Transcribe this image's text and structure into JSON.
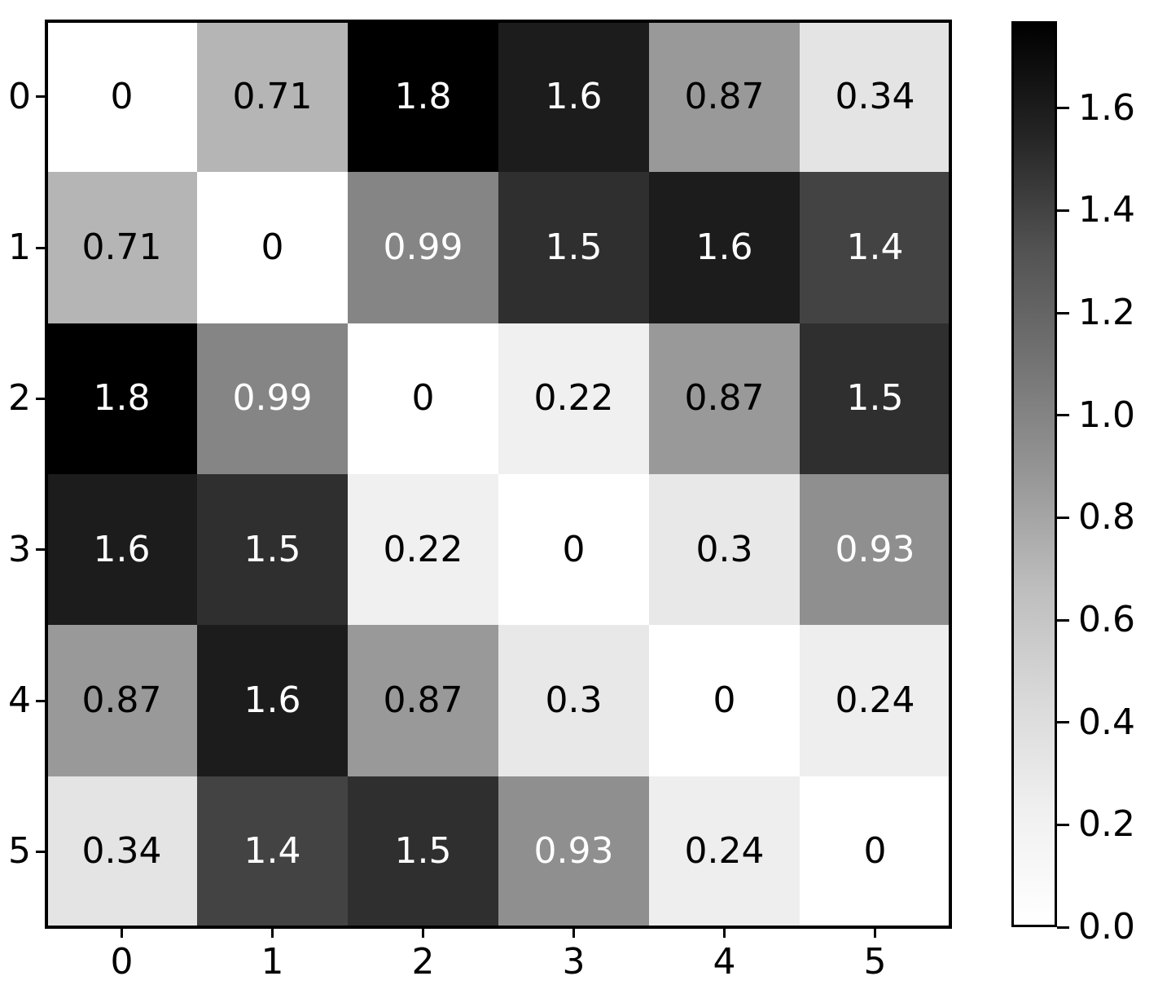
{
  "colors": {
    "background": "#ffffff",
    "spine": "#000000",
    "annotation_dark": "#000000",
    "annotation_light": "#ffffff"
  },
  "chart_data": {
    "type": "heatmap",
    "title": "",
    "xlabel": "",
    "ylabel": "",
    "colormap": "Greys",
    "vmin": 0,
    "vmax": 1.77,
    "grid": false,
    "x_tick_labels": [
      "0",
      "1",
      "2",
      "3",
      "4",
      "5"
    ],
    "y_tick_labels": [
      "0",
      "1",
      "2",
      "3",
      "4",
      "5"
    ],
    "matrix": [
      [
        0,
        0.71,
        1.8,
        1.6,
        0.87,
        0.34
      ],
      [
        0.71,
        0,
        0.99,
        1.5,
        1.6,
        1.4
      ],
      [
        1.8,
        0.99,
        0,
        0.22,
        0.87,
        1.5
      ],
      [
        1.6,
        1.5,
        0.22,
        0,
        0.3,
        0.93
      ],
      [
        0.87,
        1.6,
        0.87,
        0.3,
        0,
        0.24
      ],
      [
        0.34,
        1.4,
        1.5,
        0.93,
        0.24,
        0
      ]
    ],
    "cell_labels": [
      [
        "0",
        "0.71",
        "1.8",
        "1.6",
        "0.87",
        "0.34"
      ],
      [
        "0.71",
        "0",
        "0.99",
        "1.5",
        "1.6",
        "1.4"
      ],
      [
        "1.8",
        "0.99",
        "0",
        "0.22",
        "0.87",
        "1.5"
      ],
      [
        "1.6",
        "1.5",
        "0.22",
        "0",
        "0.3",
        "0.93"
      ],
      [
        "0.87",
        "1.6",
        "0.87",
        "0.3",
        "0",
        "0.24"
      ],
      [
        "0.34",
        "1.4",
        "1.5",
        "0.93",
        "0.24",
        "0"
      ]
    ],
    "colorbar": {
      "position": "right",
      "tick_labels": [
        "1.6",
        "1.4",
        "1.2",
        "1.0",
        "0.8",
        "0.6",
        "0.4",
        "0.2",
        "0.0"
      ],
      "tick_values": [
        1.6,
        1.4,
        1.2,
        1.0,
        0.8,
        0.6,
        0.4,
        0.2,
        0.0
      ]
    }
  }
}
